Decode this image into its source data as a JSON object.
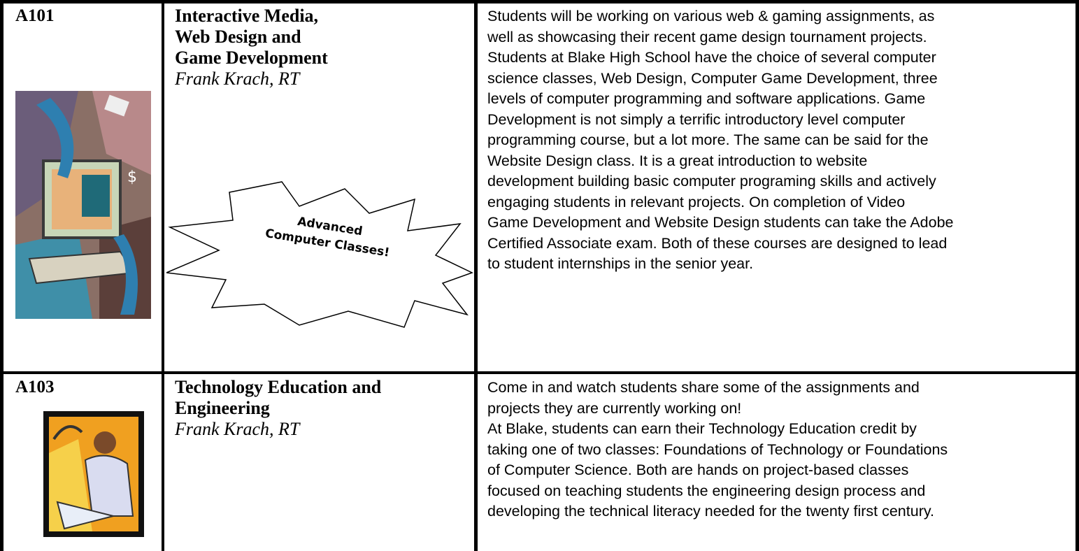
{
  "rows": [
    {
      "room": "A101",
      "title": [
        "Interactive Media,",
        "Web Design and",
        "Game Development"
      ],
      "instructor": "Frank Krach, RT",
      "description": [
        "Students will be working on various web & gaming assignments, as",
        "well as showcasing their recent game design tournament projects.",
        "Students at Blake High School have the choice of several computer",
        "science classes, Web Design, Computer Game Development, three",
        "levels of computer programming and software applications.  Game",
        "Development is not simply a terrific introductory level computer",
        "programming course, but a lot more. The same can be said for the",
        "Website Design class.  It is a great introduction to website",
        "development building basic computer programing skills and actively",
        "engaging students in relevant projects.   On completion of Video",
        "Game Development and Website Design students can take the Adobe",
        "Certified Associate exam.  Both of these courses are designed to lead",
        "to student internships in the senior year."
      ]
    },
    {
      "room": "A103",
      "title": [
        "Technology Education and",
        "Engineering"
      ],
      "instructor": "Frank Krach, RT",
      "description": [
        "Come in and watch students share some of the assignments and",
        "projects they are currently working on!",
        "At Blake, students can earn their Technology Education credit by",
        "taking one of two classes: Foundations of Technology or Foundations",
        "of Computer Science.  Both are hands on project-based classes",
        "focused on teaching students the engineering design process and",
        "developing the technical literacy needed for the twenty first century."
      ]
    }
  ],
  "callout": {
    "lines": [
      "Advanced",
      "Computer Classes!"
    ]
  }
}
